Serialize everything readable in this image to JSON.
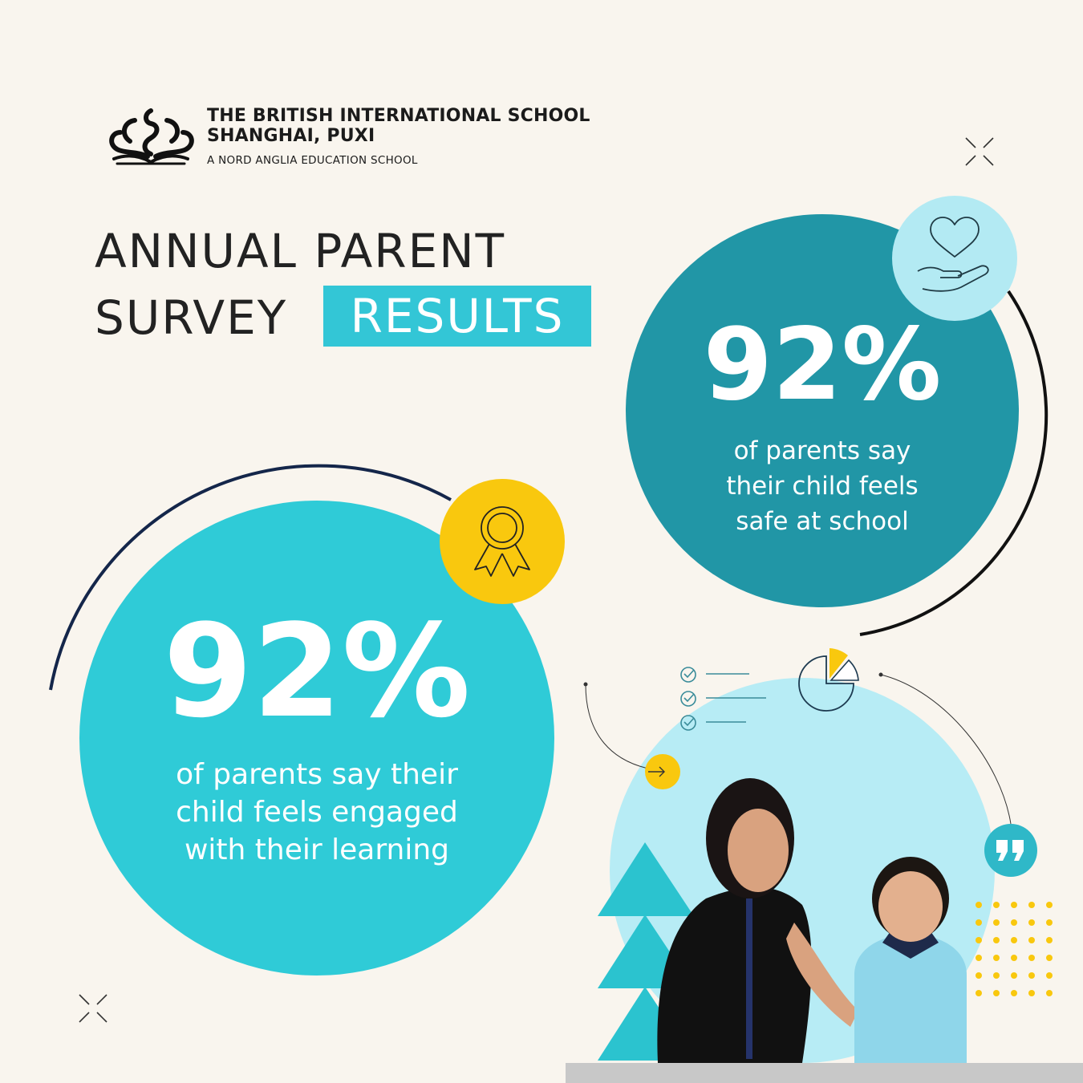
{
  "header": {
    "school_name_line1": "THE BRITISH INTERNATIONAL SCHOOL",
    "school_name_line2": "SHANGHAI, PUXI",
    "school_subtitle": "A NORD ANGLIA EDUCATION SCHOOL",
    "logo_icon": "crest-swan-book-icon"
  },
  "title": {
    "line1": "ANNUAL PARENT",
    "line2": "SURVEY",
    "highlight": "RESULTS"
  },
  "stats": [
    {
      "value": "92%",
      "caption_lines": [
        "of parents say",
        "their child feels",
        "safe at school"
      ],
      "icon": "heart-in-hand-icon",
      "circle_color": "#2196a6",
      "icon_bg": "#b3eaf3"
    },
    {
      "value": "92%",
      "caption_lines": [
        "of parents say their",
        "child feels engaged",
        "with their learning"
      ],
      "icon": "award-ribbon-icon",
      "circle_color": "#2fcbd7",
      "icon_bg": "#f9c80e"
    }
  ],
  "colors": {
    "background": "#f9f5ee",
    "teal_dark": "#2196a6",
    "teal": "#2fcbd7",
    "light_blue": "#b7ecf5",
    "yellow": "#f9c80e",
    "text": "#222222"
  },
  "decorations": [
    "checklist-icon",
    "pie-chart-icon",
    "arrow-right-icon",
    "quote-icon",
    "sparkle-x-icon",
    "dot-grid",
    "triangles",
    "photo-teacher-and-child"
  ]
}
